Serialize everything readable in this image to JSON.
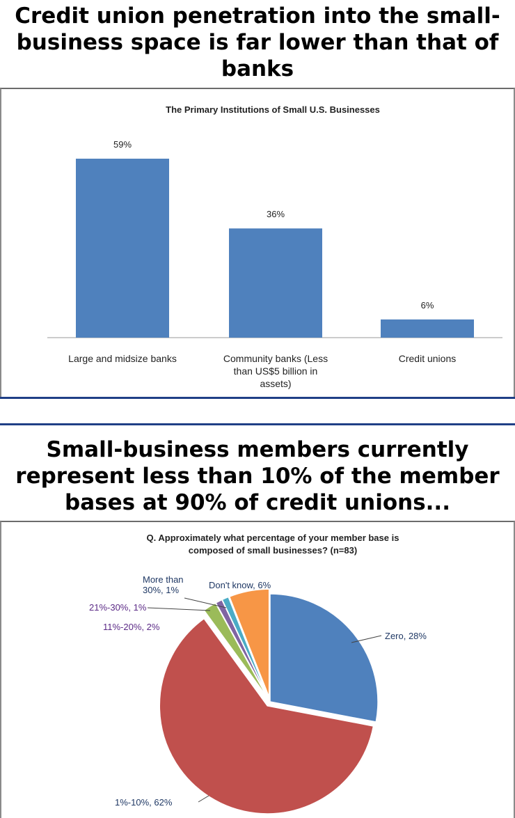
{
  "headline_top": [
    "Credit union penetration into the small-",
    "business space is far lower than that of",
    "banks"
  ],
  "headline_bottom": [
    "Small-business members currently",
    "represent less than 10% of the member",
    "bases at 90% of credit unions..."
  ],
  "colors": {
    "bar": "#4f81bd",
    "rule_blue": "#1f3f86",
    "pie_zero": "#4f81bd",
    "pie_1_10": "#c0504d",
    "pie_11_20": "#9bbb59",
    "pie_21_30": "#8064a2",
    "pie_more_30": "#4bacc6",
    "pie_dont_know": "#f79646"
  },
  "chart_data": [
    {
      "type": "bar",
      "title": "The Primary Institutions of Small U.S. Businesses",
      "categories": [
        [
          "Large and midsize banks"
        ],
        [
          "Community banks (Less",
          "than US$5 billion in",
          "assets)"
        ],
        [
          "Credit unions"
        ]
      ],
      "values": [
        59,
        36,
        6
      ],
      "data_labels": [
        "59%",
        "36%",
        "6%"
      ],
      "ylim": [
        0,
        70
      ],
      "grid": false,
      "legend": "none"
    },
    {
      "type": "pie",
      "title": [
        "Q. Approximately what percentage of your member base is",
        "composed of small businesses? (n=83)"
      ],
      "slices": [
        {
          "label": [
            "Zero, 28%"
          ],
          "value": 28,
          "color_key": "pie_zero",
          "exploded": false
        },
        {
          "label": [
            "1%-10%, 62%"
          ],
          "value": 62,
          "color_key": "pie_1_10",
          "exploded": true
        },
        {
          "label": [
            "11%-20%, 2%"
          ],
          "value": 2,
          "color_key": "pie_11_20",
          "exploded": true
        },
        {
          "label": [
            "21%-30%, 1%"
          ],
          "value": 1,
          "color_key": "pie_21_30",
          "exploded": true
        },
        {
          "label": [
            "More than",
            "30%, 1%"
          ],
          "value": 1,
          "color_key": "pie_more_30",
          "exploded": true
        },
        {
          "label": [
            "Don't know, 6%"
          ],
          "value": 6,
          "color_key": "pie_dont_know",
          "exploded": true
        }
      ],
      "legend": "none"
    }
  ]
}
